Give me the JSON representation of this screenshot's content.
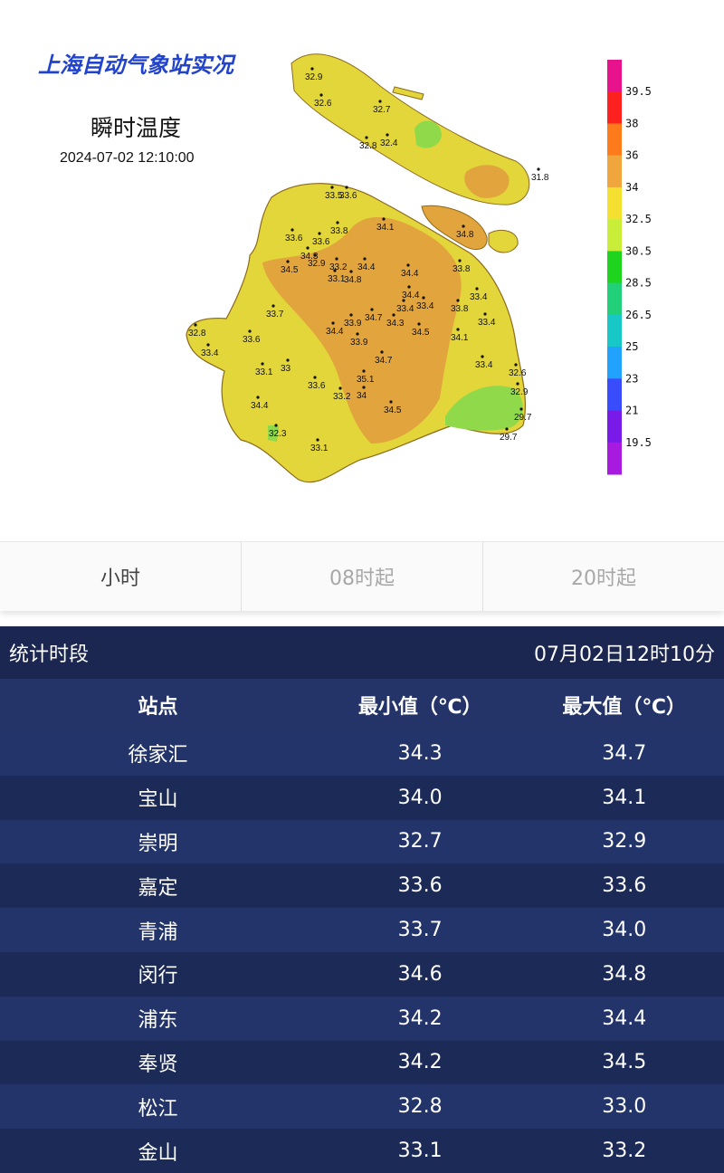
{
  "map": {
    "title": "上海自动气象站实况",
    "subtitle": "瞬时温度",
    "timestamp": "2024-07-02 12:10:00",
    "colors": {
      "orange": "#e2a43c",
      "yellow": "#e3d63a",
      "green": "#8fd94a",
      "border": "#8c6a1c"
    },
    "legend": {
      "labels": [
        "39.5",
        "38",
        "36",
        "34",
        "32.5",
        "30.5",
        "28.5",
        "26.5",
        "25",
        "23",
        "21",
        "19.5"
      ],
      "colors": [
        "#e8128c",
        "#ff2020",
        "#ff7a1a",
        "#f0a63c",
        "#f5df30",
        "#c8ee3a",
        "#1fd41f",
        "#22d07a",
        "#18c8c8",
        "#22a2ff",
        "#3a4cff",
        "#7a1ae8",
        "#a81ae0"
      ]
    },
    "stations": [
      "32.9",
      "32.6",
      "32.7",
      "32.8",
      "32.4",
      "31.8",
      "33.5",
      "33.6",
      "34.1",
      "34.8",
      "33.8",
      "33.6",
      "33.6",
      "34.3",
      "34.5",
      "32.9",
      "33.2",
      "33.1",
      "34.4",
      "34.8",
      "33.8",
      "34.4",
      "34.4",
      "33.4",
      "33.8",
      "33.4",
      "33.9",
      "34.3",
      "33.4",
      "33.7",
      "34.7",
      "34.5",
      "34.1",
      "33.4",
      "32.8",
      "33.4",
      "34.4",
      "33.9",
      "34.7",
      "35.1",
      "34",
      "33.6",
      "33.2",
      "33.1",
      "33",
      "34.5",
      "33.4",
      "32.6",
      "32.9",
      "34.4",
      "29.7",
      "29.7",
      "32.3",
      "33.1",
      "33.6"
    ]
  },
  "tabs": [
    "小时",
    "08时起",
    "20时起"
  ],
  "stats": {
    "period_label": "统计时段",
    "period_value": "07月02日12时10分",
    "columns": [
      "站点",
      "最小值（℃）",
      "最大值（℃）"
    ],
    "rows": [
      [
        "徐家汇",
        "34.3",
        "34.7"
      ],
      [
        "宝山",
        "34.0",
        "34.1"
      ],
      [
        "崇明",
        "32.7",
        "32.9"
      ],
      [
        "嘉定",
        "33.6",
        "33.6"
      ],
      [
        "青浦",
        "33.7",
        "34.0"
      ],
      [
        "闵行",
        "34.6",
        "34.8"
      ],
      [
        "浦东",
        "34.2",
        "34.4"
      ],
      [
        "奉贤",
        "34.2",
        "34.5"
      ],
      [
        "松江",
        "32.8",
        "33.0"
      ],
      [
        "金山",
        "33.1",
        "33.2"
      ]
    ]
  }
}
